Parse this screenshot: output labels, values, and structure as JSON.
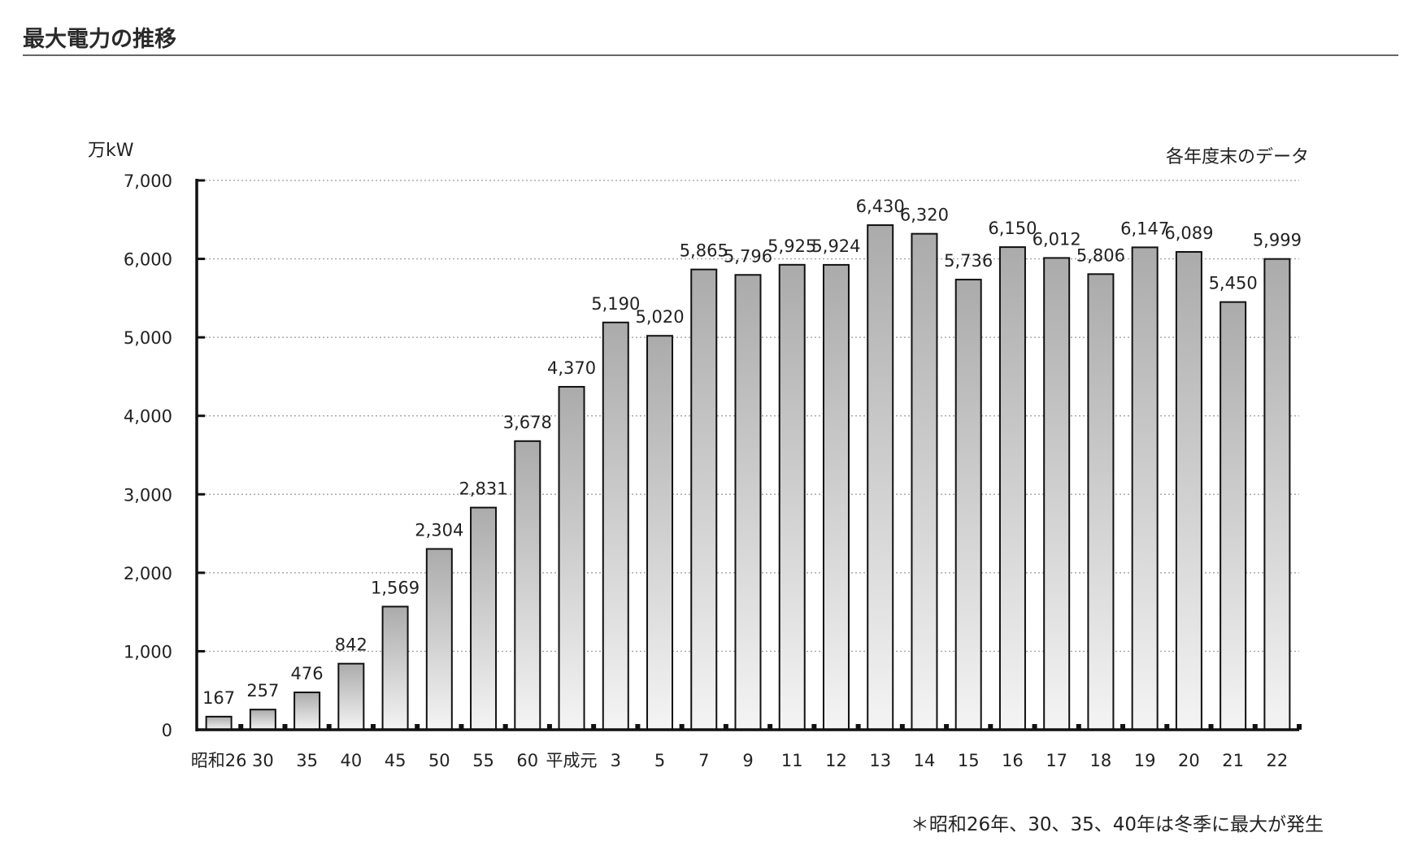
{
  "page_title": "最大電力の推移",
  "chart_data": {
    "type": "bar",
    "y_unit": "万kW",
    "note_top": "各年度末のデータ",
    "footnote": "＊昭和26年、30、35、40年は冬季に最大が発生",
    "ylim": [
      0,
      7000
    ],
    "yticks": [
      "0",
      "1,000",
      "2,000",
      "3,000",
      "4,000",
      "5,000",
      "6,000",
      "7,000"
    ],
    "grid": "horizontal dotted",
    "categories": [
      "昭和26",
      "30",
      "35",
      "40",
      "45",
      "50",
      "55",
      "60",
      "平成元",
      "3",
      "5",
      "7",
      "9",
      "11",
      "12",
      "13",
      "14",
      "15",
      "16",
      "17",
      "18",
      "19",
      "20",
      "21",
      "22"
    ],
    "values": [
      167,
      257,
      476,
      842,
      1569,
      2304,
      2831,
      3678,
      4370,
      5190,
      5020,
      5865,
      5796,
      5925,
      5924,
      6430,
      6320,
      5736,
      6150,
      6012,
      5806,
      6147,
      6089,
      5450,
      5999
    ],
    "value_labels": [
      "167",
      "257",
      "476",
      "842",
      "1,569",
      "2,304",
      "2,831",
      "3,678",
      "4,370",
      "5,190",
      "5,020",
      "5,865",
      "5,796",
      "5,925",
      "5,924",
      "6,430",
      "6,320",
      "5,736",
      "6,150",
      "6,012",
      "5,806",
      "6,147",
      "6,089",
      "5,450",
      "5,999"
    ],
    "colors": {
      "bar_top": "#ababab",
      "bar_bottom": "#f4f4f4",
      "bar_stroke": "#111111",
      "axis": "#111111",
      "grid": "#9a9a9a"
    }
  }
}
